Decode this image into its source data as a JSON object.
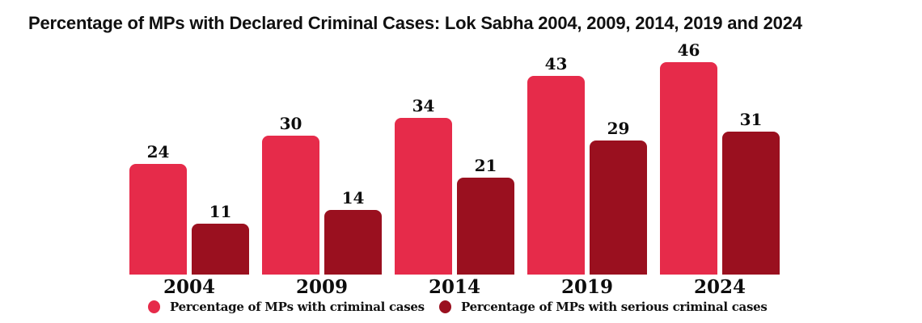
{
  "title": "Percentage of MPs with Declared Criminal Cases: Lok Sabha 2004, 2009, 2014, 2019 and 2024",
  "chart_data": {
    "type": "bar",
    "categories": [
      "2004",
      "2009",
      "2014",
      "2019",
      "2024"
    ],
    "series": [
      {
        "name": "Percentage of MPs with criminal cases",
        "color": "#E62B4A",
        "values": [
          24,
          30,
          34,
          43,
          46
        ]
      },
      {
        "name": "Percentage of MPs with serious criminal cases",
        "color": "#9A101F",
        "values": [
          11,
          14,
          21,
          29,
          31
        ]
      }
    ],
    "ylim": [
      0,
      48
    ],
    "grid": false,
    "axes_shown": false,
    "bar_value_labels": true,
    "legend_position": "bottom",
    "legend_marker": "circle"
  }
}
